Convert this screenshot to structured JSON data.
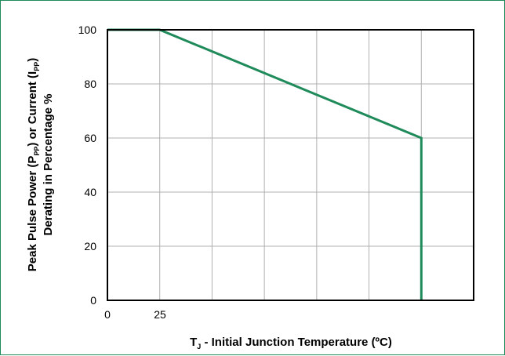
{
  "chart_data": {
    "type": "line",
    "title": "",
    "xlabel": {
      "main": "T",
      "sub": "J",
      "rest": " - Initial Junction Temperature (ºC)"
    },
    "ylabel": {
      "line1_a": "Peak Pulse Power (P",
      "line1_sub1": "PP",
      "line1_b": ") or Current (I",
      "line1_sub2": "PP",
      "line1_c": ")",
      "line2": "Derating in Percentage %"
    },
    "x_tick_labels": [
      "0",
      "25"
    ],
    "y_tick_labels": [
      "0",
      "20",
      "40",
      "60",
      "80",
      "100"
    ],
    "yticks": [
      0,
      20,
      40,
      60,
      80,
      100
    ],
    "ylim": [
      0,
      100
    ],
    "xlim": [
      0,
      175
    ],
    "grid": true,
    "series": [
      {
        "color": "#1f8a5a",
        "x": [
          0,
          25,
          150,
          150
        ],
        "y": [
          100,
          100,
          60,
          0
        ]
      }
    ]
  },
  "colors": {
    "frame": "#1f8a5a",
    "line": "#1f8a5a",
    "grid": "#b0b0b0",
    "axis": "#000000"
  }
}
